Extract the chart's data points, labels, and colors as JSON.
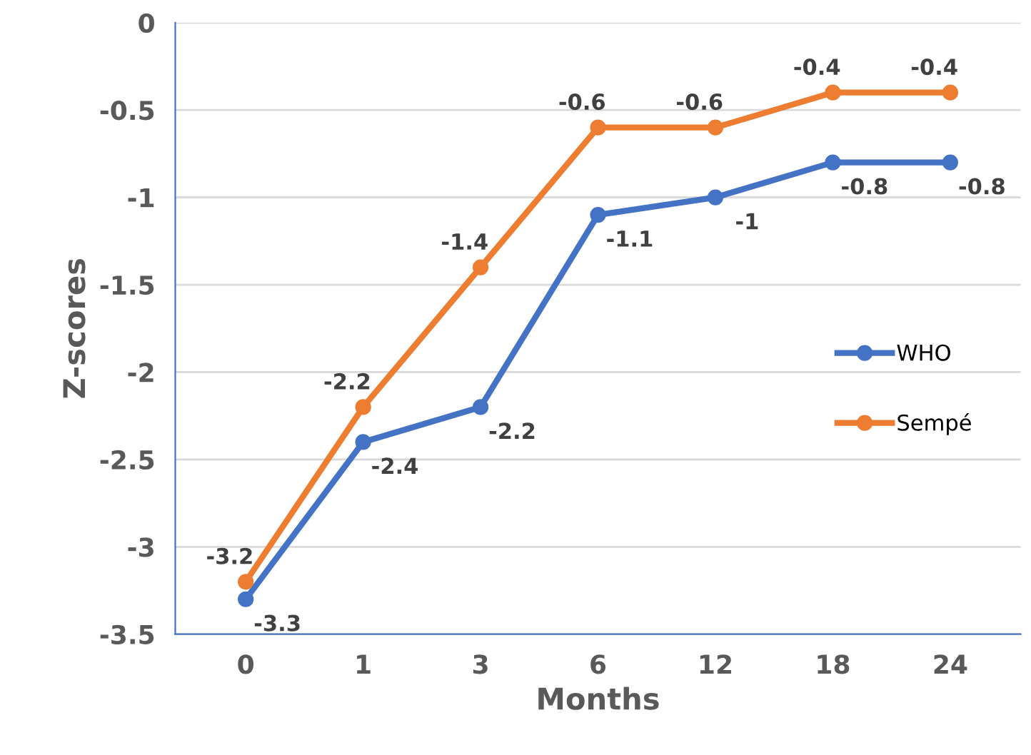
{
  "chart_data": {
    "type": "line",
    "xlabel": "Months",
    "ylabel": "Z-scores",
    "categories": [
      "0",
      "1",
      "3",
      "6",
      "12",
      "18",
      "24"
    ],
    "series": [
      {
        "name": "WHO",
        "color": "#4472c4",
        "values": [
          -3.3,
          -2.4,
          -2.2,
          -1.1,
          -1,
          -0.8,
          -0.8
        ]
      },
      {
        "name": "Sempé",
        "color": "#ed7d31",
        "values": [
          -3.2,
          -2.2,
          -1.4,
          -0.6,
          -0.6,
          -0.4,
          -0.4
        ]
      }
    ],
    "ylim": [
      -3.5,
      0
    ],
    "yticks": [
      -3.5,
      -3,
      -2.5,
      -2,
      -1.5,
      -1,
      -0.5,
      0
    ],
    "grid": "y",
    "legend": "right",
    "marker": "circle",
    "line_style": "solid",
    "data_labels": true
  }
}
